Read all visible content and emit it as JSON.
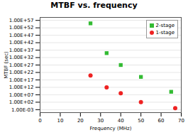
{
  "chart_data": {
    "type": "scatter",
    "title": "MTBF vs. frequency",
    "xlabel": "Frequency (MHz)",
    "ylabel": "MTBF (sec)",
    "series": [
      {
        "name": "2-stage",
        "color": "#33bb33",
        "marker": "square",
        "x": [
          25,
          33,
          40,
          50,
          65
        ],
        "values": [
          55,
          35,
          27,
          19,
          9
        ]
      },
      {
        "name": "1-stage",
        "color": "#ee2222",
        "marker": "circle",
        "x": [
          25,
          33,
          40,
          50,
          67
        ],
        "values": [
          20,
          12,
          8,
          2,
          -2
        ]
      }
    ],
    "xlim": [
      0,
      70
    ],
    "xticks": [
      0,
      10,
      20,
      30,
      40,
      50,
      60,
      70
    ],
    "ylim": [
      -5,
      59
    ],
    "yticks": [
      {
        "value": 57,
        "label": "1.00E+57"
      },
      {
        "value": 52,
        "label": "1.00E+52"
      },
      {
        "value": 47,
        "label": "1.00E+47"
      },
      {
        "value": 42,
        "label": "1.00E+42"
      },
      {
        "value": 37,
        "label": "1.00E+37"
      },
      {
        "value": 32,
        "label": "1.00E+32"
      },
      {
        "value": 27,
        "label": "1.00E+27"
      },
      {
        "value": 22,
        "label": "1.00E+22"
      },
      {
        "value": 17,
        "label": "1.00E+17"
      },
      {
        "value": 12,
        "label": "1.00E+12"
      },
      {
        "value": 7,
        "label": "1.00E+07"
      },
      {
        "value": 2,
        "label": "1.00E+02"
      },
      {
        "value": -3,
        "label": "1.00E-03"
      }
    ],
    "grid": true,
    "legend": "upper right"
  }
}
